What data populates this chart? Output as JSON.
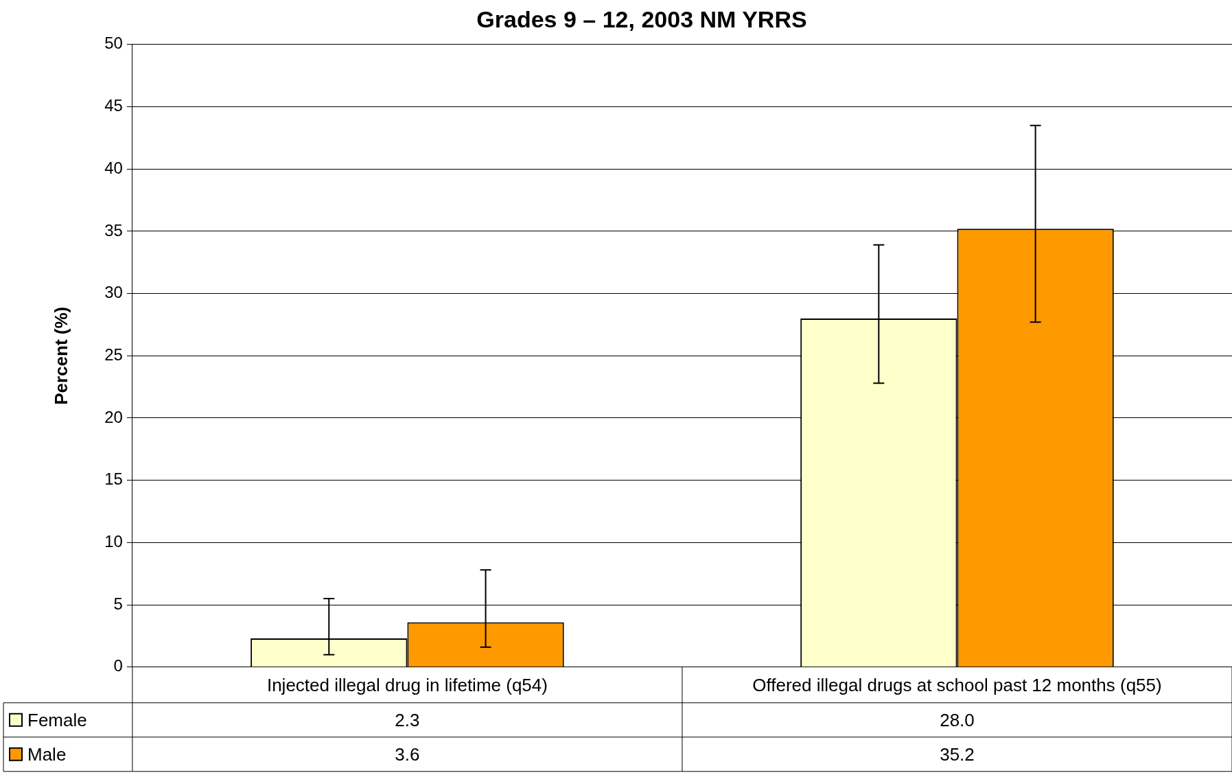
{
  "chart_data": {
    "type": "bar",
    "title": "Grades 9 – 12, 2003 NM YRRS",
    "ylabel": "Percent (%)",
    "categories": [
      "Injected illegal drug in lifetime (q54)",
      "Offered illegal drugs at school past 12 months (q55)"
    ],
    "series": [
      {
        "name": "Female",
        "color": "#ffffcc",
        "values": [
          2.3,
          28.0
        ],
        "value_labels": [
          "2.3",
          "28.0"
        ],
        "errors": [
          [
            1.0,
            5.5
          ],
          [
            22.8,
            33.9
          ]
        ]
      },
      {
        "name": "Male",
        "color": "#ff9900",
        "values": [
          3.6,
          35.2
        ],
        "value_labels": [
          "3.6",
          "35.2"
        ],
        "errors": [
          [
            1.6,
            7.8
          ],
          [
            27.7,
            43.5
          ]
        ]
      }
    ],
    "ylim": [
      0,
      50
    ],
    "yticks": [
      0,
      5,
      10,
      15,
      20,
      25,
      30,
      35,
      40,
      45,
      50
    ],
    "grid": "y",
    "legend": "bottom left"
  }
}
